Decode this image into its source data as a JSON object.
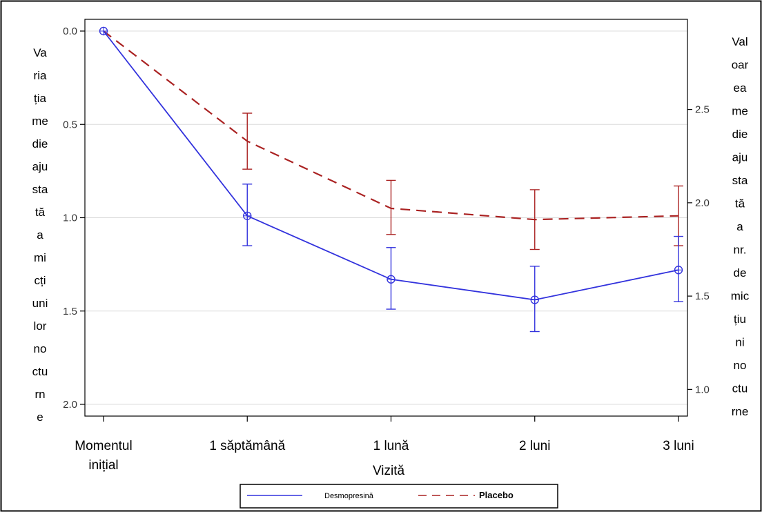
{
  "chart_data": {
    "type": "line",
    "categories": [
      "Momentul inițial",
      "1 săptămână",
      "1 lună",
      "2 luni",
      "3 luni"
    ],
    "category_lines": [
      [
        "Momentul",
        "inițial"
      ],
      [
        "1 săptămână"
      ],
      [
        "1 lună"
      ],
      [
        "2 luni"
      ],
      [
        "3 luni"
      ]
    ],
    "xlabel": "Vizită",
    "ylabel_left_lines": [
      "Va",
      "ria",
      "ția",
      "me",
      "die",
      "aju",
      "sta",
      "tă",
      "a",
      "mi",
      "cți",
      "uni",
      "lor",
      "no",
      "ctu",
      "rn",
      "e"
    ],
    "ylabel_right_lines": [
      "Val",
      "oar",
      "ea",
      "me",
      "die",
      "aju",
      "sta",
      "tă",
      "a",
      "nr.",
      "de",
      "mic",
      "țiu",
      "ni",
      "no",
      "ctu",
      "rne"
    ],
    "y_left": {
      "reversed": true,
      "ylim": [
        0.0,
        2.0
      ],
      "ticks": [
        "0.0",
        "0.5",
        "1.0",
        "1.5",
        "2.0"
      ],
      "tick_values": [
        0.0,
        0.5,
        1.0,
        1.5,
        2.0
      ]
    },
    "y_right": {
      "ticks": [
        "2.5",
        "2.0",
        "1.5",
        "1.0"
      ],
      "tick_values": [
        2.5,
        2.0,
        1.5,
        1.0
      ],
      "anchor_left_value": 0.0,
      "anchor_right_value": 2.92
    },
    "grid": true,
    "legend_placement": "bottom-center",
    "series": [
      {
        "name": "Desmopresină",
        "color": "#3333dd",
        "style": "solid",
        "marker": "circle",
        "values": [
          0.0,
          0.99,
          1.33,
          1.44,
          1.28
        ],
        "error_low": [
          0.0,
          0.82,
          1.16,
          1.26,
          1.1
        ],
        "error_high": [
          0.0,
          1.15,
          1.49,
          1.61,
          1.45
        ]
      },
      {
        "name": "Placebo",
        "color": "#aa2222",
        "style": "dashed",
        "marker": "none",
        "values": [
          0.0,
          0.59,
          0.95,
          1.01,
          0.99
        ],
        "error_low": [
          0.0,
          0.44,
          0.8,
          0.85,
          0.83
        ],
        "error_high": [
          0.0,
          0.74,
          1.09,
          1.17,
          1.15
        ]
      }
    ]
  }
}
